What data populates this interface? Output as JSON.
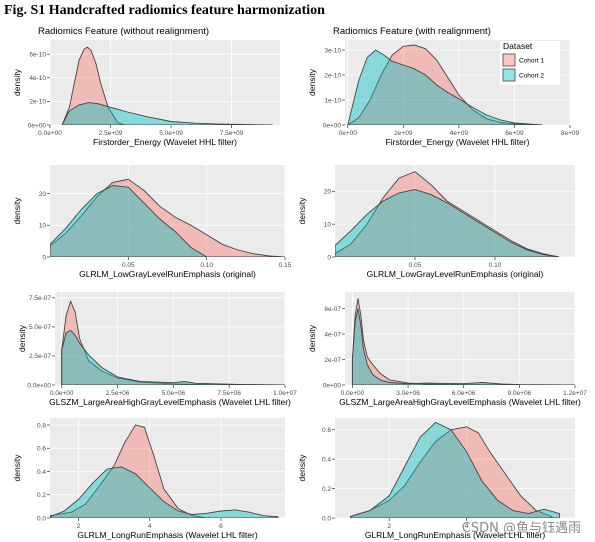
{
  "figure_title": "Fig. S1 Handcrafted radiomics feature harmonization",
  "watermark": "CSDN @鱼与钰遇雨",
  "colors": {
    "cohort1_fill": "#f8766d",
    "cohort2_fill": "#00bfc4",
    "panel_bg": "#ebebeb",
    "grid": "#ffffff",
    "outline": "#444444"
  },
  "legend": {
    "title": "Dataset",
    "entries": [
      "Cohort 1",
      "Cohort 2"
    ],
    "placement": "top-right of top-right panel"
  },
  "chart_data": [
    {
      "type": "area",
      "title": "Radiomics Feature (without realignment)",
      "xlabel": "Firstorder_Energy (Wavelet HHL filter)",
      "ylabel": "density",
      "xlim": [
        0,
        9500000000.0
      ],
      "ylim": [
        0,
        7.2e-10
      ],
      "xticks": [
        0,
        2500000000.0,
        5000000000.0,
        7500000000.0
      ],
      "xtick_labels": [
        "0.0e+00",
        "2.5e+09",
        "5.0e+09",
        "7.5e+09"
      ],
      "yticks": [
        0,
        2e-10,
        4e-10,
        6e-10
      ],
      "ytick_labels": [
        "0e+00",
        "2e-10",
        "4e-10",
        "6e-10"
      ],
      "series": [
        {
          "name": "Cohort 1",
          "x": [
            500000000.0,
            800000000.0,
            1000000000.0,
            1200000000.0,
            1400000000.0,
            1550000000.0,
            1700000000.0,
            1900000000.0,
            2100000000.0,
            2400000000.0,
            2800000000.0,
            3100000000.0
          ],
          "y": [
            0,
            1.5e-10,
            3.5e-10,
            5.5e-10,
            6.4e-10,
            6.6e-10,
            6.3e-10,
            5.2e-10,
            3.5e-10,
            1.5e-10,
            2e-11,
            0
          ]
        },
        {
          "name": "Cohort 2",
          "x": [
            500000000.0,
            800000000.0,
            1200000000.0,
            1600000000.0,
            2000000000.0,
            2600000000.0,
            3200000000.0,
            4000000000.0,
            5000000000.0,
            6000000000.0,
            7000000000.0,
            8000000000.0,
            9200000000.0
          ],
          "y": [
            0,
            1.2e-10,
            1.7e-10,
            1.9e-10,
            1.8e-10,
            1.45e-10,
            1.1e-10,
            7e-11,
            3e-11,
            1.5e-11,
            8e-12,
            4e-12,
            0
          ]
        }
      ]
    },
    {
      "type": "area",
      "title": "Radiomics Feature (with realignment)",
      "xlabel": "Firstorder_Energy (Wavelet HHL filter)",
      "ylabel": "density",
      "xlim": [
        -100000000.0,
        8000000000.0
      ],
      "ylim": [
        0,
        3.4e-10
      ],
      "xticks": [
        0,
        2000000000.0,
        4000000000.0,
        6000000000.0,
        8000000000.0
      ],
      "xtick_labels": [
        "0e+00",
        "2e+09",
        "4e+09",
        "6e+09",
        "8e+09"
      ],
      "yticks": [
        0,
        1e-10,
        2e-10,
        3e-10
      ],
      "ytick_labels": [
        "0e+00",
        "1e-10",
        "2e-10",
        "3e-10"
      ],
      "series": [
        {
          "name": "Cohort 1",
          "x": [
            0,
            400000000.0,
            800000000.0,
            1200000000.0,
            1600000000.0,
            2000000000.0,
            2400000000.0,
            2800000000.0,
            3200000000.0,
            3600000000.0,
            4000000000.0,
            4500000000.0,
            5000000000.0,
            5500000000.0,
            6000000000.0,
            7000000000.0
          ],
          "y": [
            0,
            3e-11,
            1e-10,
            2e-10,
            2.8e-10,
            3.15e-10,
            3.2e-10,
            3.05e-10,
            2.6e-10,
            1.9e-10,
            1.2e-10,
            6e-11,
            2.5e-11,
            1e-11,
            4e-12,
            0
          ]
        },
        {
          "name": "Cohort 2",
          "x": [
            0,
            400000000.0,
            700000000.0,
            1000000000.0,
            1300000000.0,
            1600000000.0,
            2000000000.0,
            2400000000.0,
            2800000000.0,
            3200000000.0,
            3600000000.0,
            4000000000.0,
            4500000000.0,
            5000000000.0,
            5500000000.0,
            6000000000.0,
            7000000000.0
          ],
          "y": [
            0,
            1.8e-10,
            2.7e-10,
            3e-10,
            2.8e-10,
            2.55e-10,
            2.4e-10,
            2.25e-10,
            2e-10,
            1.6e-10,
            1.3e-10,
            1.05e-10,
            7e-11,
            4e-11,
            2e-11,
            8e-12,
            0
          ]
        }
      ]
    },
    {
      "type": "area",
      "xlabel": "GLRLM_LowGrayLevelRunEmphasis (original)",
      "ylabel": "density",
      "xlim": [
        0,
        0.15
      ],
      "ylim": [
        0,
        29
      ],
      "xticks": [
        0.05,
        0.1,
        0.15
      ],
      "xtick_labels": [
        "0.05",
        "0.10",
        "0.15"
      ],
      "yticks": [
        0,
        10,
        20
      ],
      "ytick_labels": [
        "0",
        "10",
        "20"
      ],
      "series": [
        {
          "name": "Cohort 1",
          "x": [
            0,
            0.01,
            0.02,
            0.03,
            0.04,
            0.05,
            0.06,
            0.07,
            0.08,
            0.09,
            0.1,
            0.11,
            0.12,
            0.13,
            0.14,
            0.15
          ],
          "y": [
            3.5,
            7.5,
            13,
            19,
            23.5,
            24.5,
            21,
            16,
            12.5,
            10,
            7,
            4,
            2.2,
            1,
            0.3,
            0
          ]
        },
        {
          "name": "Cohort 2",
          "x": [
            0,
            0.01,
            0.02,
            0.03,
            0.04,
            0.05,
            0.06,
            0.07,
            0.08,
            0.09,
            0.1
          ],
          "y": [
            4,
            9,
            15,
            20,
            22.5,
            22,
            17,
            12,
            8,
            3,
            0
          ]
        }
      ]
    },
    {
      "type": "area",
      "xlabel": "GLRLM_LowGrayLevelRunEmphasis (original)",
      "ylabel": "density",
      "xlim": [
        0,
        0.15
      ],
      "ylim": [
        0,
        28
      ],
      "xticks": [
        0.05,
        0.1
      ],
      "xtick_labels": [
        "0.05",
        "0.10"
      ],
      "yticks": [
        0,
        10,
        20
      ],
      "ytick_labels": [
        "0",
        "10",
        "20"
      ],
      "series": [
        {
          "name": "Cohort 1",
          "x": [
            0,
            0.01,
            0.02,
            0.03,
            0.04,
            0.05,
            0.06,
            0.07,
            0.08,
            0.09,
            0.1,
            0.11,
            0.12,
            0.13,
            0.14
          ],
          "y": [
            1,
            4,
            10,
            18,
            24,
            26,
            22,
            17,
            14,
            11,
            8,
            5,
            2.5,
            1,
            0
          ]
        },
        {
          "name": "Cohort 2",
          "x": [
            0,
            0.01,
            0.02,
            0.03,
            0.04,
            0.05,
            0.06,
            0.07,
            0.08,
            0.09,
            0.1,
            0.11,
            0.12,
            0.13,
            0.14
          ],
          "y": [
            3.5,
            8,
            13,
            17,
            19.5,
            20.5,
            19,
            16.5,
            13.5,
            10.5,
            7.5,
            4.5,
            2.2,
            0.8,
            0
          ]
        }
      ]
    },
    {
      "type": "area",
      "xlabel": "GLSZM_LargeAreaHighGrayLevelEmphasis (Wavelet LHL filter)",
      "ylabel": "density",
      "xlim": [
        -300000.0,
        10000000.0
      ],
      "ylim": [
        0,
        8e-07
      ],
      "xticks": [
        0,
        2500000.0,
        5000000.0,
        7500000.0,
        10000000.0
      ],
      "xtick_labels": [
        "0.0e+00",
        "2.5e+06",
        "5.0e+06",
        "7.5e+06",
        "1.0e+07"
      ],
      "yticks": [
        0,
        2.5e-07,
        5e-07,
        7.5e-07
      ],
      "ytick_labels": [
        "0.0e+00",
        "2.5e-07",
        "5.0e-07",
        "7.5e-07"
      ],
      "series": [
        {
          "name": "Cohort 1",
          "x": [
            0,
            200000.0,
            400000.0,
            600000.0,
            800000.0,
            1200000.0,
            1800000.0,
            2500000.0,
            3500000.0,
            5000000.0,
            6000000.0,
            8000000.0,
            10000000.0
          ],
          "y": [
            3e-07,
            6e-07,
            7.2e-07,
            6.3e-07,
            4e-07,
            2.1e-07,
            1.2e-07,
            6e-08,
            2.5e-08,
            1e-08,
            5e-09,
            2e-09,
            0
          ]
        },
        {
          "name": "Cohort 2",
          "x": [
            0,
            200000.0,
            400000.0,
            600000.0,
            800000.0,
            1200000.0,
            1800000.0,
            2500000.0,
            3500000.0,
            5000000.0,
            5500000.0,
            6000000.0,
            8000000.0,
            10000000.0
          ],
          "y": [
            3e-07,
            4.5e-07,
            4.7e-07,
            4.3e-07,
            3.6e-07,
            2.6e-07,
            1.5e-07,
            7e-08,
            3e-08,
            2e-08,
            3e-08,
            1.5e-08,
            5e-09,
            0
          ]
        }
      ]
    },
    {
      "type": "area",
      "xlabel": "GLSZM_LargeAreaHighGrayLevelEmphasis (Wavelet LHL filter)",
      "ylabel": "density",
      "xlim": [
        -400000.0,
        12000000.0
      ],
      "ylim": [
        0,
        7.3e-07
      ],
      "xticks": [
        0,
        3000000.0,
        6000000.0,
        9000000.0,
        12000000.0
      ],
      "xtick_labels": [
        "0.0e+00",
        "3.0e+06",
        "6.0e+06",
        "9.0e+06",
        "1.2e+07"
      ],
      "yticks": [
        0,
        2e-07,
        4e-07,
        6e-07
      ],
      "ytick_labels": [
        "0e+00",
        "2e-07",
        "4e-07",
        "6e-07"
      ],
      "series": [
        {
          "name": "Cohort 1",
          "x": [
            0,
            150000.0,
            300000.0,
            450000.0,
            600000.0,
            800000.0,
            1100000.0,
            1500000.0,
            2000000.0,
            3000000.0,
            4000000.0,
            6000000.0,
            9000000.0,
            12000000.0
          ],
          "y": [
            2e-07,
            5.5e-07,
            6.8e-07,
            5.5e-07,
            3.5e-07,
            2.2e-07,
            1.6e-07,
            9e-08,
            4e-08,
            1.5e-08,
            8e-09,
            3e-09,
            1e-09,
            0
          ]
        },
        {
          "name": "Cohort 2",
          "x": [
            0,
            150000.0,
            300000.0,
            450000.0,
            600000.0,
            800000.0,
            1100000.0,
            1500000.0,
            2000000.0,
            3000000.0,
            4000000.0,
            6000000.0,
            7000000.0,
            8000000.0,
            9000000.0,
            12000000.0
          ],
          "y": [
            2e-07,
            5e-07,
            6e-07,
            4.7e-07,
            2.8e-07,
            1.6e-07,
            8e-08,
            4e-08,
            2e-08,
            1e-08,
            1.5e-08,
            1e-08,
            2e-08,
            8e-09,
            3e-09,
            0
          ]
        }
      ]
    },
    {
      "type": "area",
      "xlabel": "GLRLM_LongRunEmphasis (Wavelet LHL filter)",
      "ylabel": "density",
      "xlim": [
        1.2,
        7.8
      ],
      "ylim": [
        0,
        0.86
      ],
      "xticks": [
        2,
        4,
        6
      ],
      "xtick_labels": [
        "2",
        "4",
        "6"
      ],
      "yticks": [
        0,
        0.2,
        0.4,
        0.6,
        0.8
      ],
      "ytick_labels": [
        "0.0",
        "0.2",
        "0.4",
        "0.6",
        "0.8"
      ],
      "series": [
        {
          "name": "Cohort 1",
          "x": [
            1.2,
            1.8,
            2.2,
            2.6,
            3.0,
            3.3,
            3.6,
            3.85,
            4.1,
            4.4,
            4.8,
            5.2,
            5.6
          ],
          "y": [
            0.02,
            0.05,
            0.12,
            0.28,
            0.45,
            0.65,
            0.8,
            0.78,
            0.55,
            0.25,
            0.08,
            0.02,
            0
          ]
        },
        {
          "name": "Cohort 2",
          "x": [
            1.2,
            1.6,
            2.0,
            2.4,
            2.8,
            3.2,
            3.6,
            4.0,
            4.4,
            4.8,
            5.2,
            5.6,
            6.0,
            6.4,
            6.8,
            7.2,
            7.6
          ],
          "y": [
            0.01,
            0.06,
            0.16,
            0.3,
            0.42,
            0.44,
            0.38,
            0.26,
            0.14,
            0.06,
            0.03,
            0.04,
            0.06,
            0.07,
            0.05,
            0.02,
            0.01
          ]
        }
      ]
    },
    {
      "type": "area",
      "xlabel": "GLRLM_LongRunEmphasis (Wavelet LHL filter)",
      "ylabel": "density",
      "xlim": [
        0.6,
        6.8
      ],
      "ylim": [
        0,
        0.68
      ],
      "xticks": [
        2,
        4
      ],
      "xtick_labels": [
        "2",
        "4"
      ],
      "yticks": [
        0,
        0.2,
        0.4,
        0.6
      ],
      "ytick_labels": [
        "0.0",
        "0.2",
        "0.4",
        "0.6"
      ],
      "series": [
        {
          "name": "Cohort 1",
          "x": [
            1.0,
            1.5,
            2.0,
            2.4,
            2.8,
            3.2,
            3.6,
            4.0,
            4.3,
            4.6,
            5.0,
            5.4,
            5.8,
            6.2
          ],
          "y": [
            0.01,
            0.05,
            0.12,
            0.22,
            0.38,
            0.52,
            0.6,
            0.62,
            0.58,
            0.45,
            0.3,
            0.15,
            0.05,
            0.01
          ]
        },
        {
          "name": "Cohort 2",
          "x": [
            1.0,
            1.5,
            2.0,
            2.4,
            2.8,
            3.2,
            3.6,
            4.0,
            4.4,
            4.8,
            5.2,
            5.6,
            6.0,
            6.4
          ],
          "y": [
            0.01,
            0.05,
            0.15,
            0.35,
            0.55,
            0.65,
            0.6,
            0.45,
            0.25,
            0.12,
            0.05,
            0.03,
            0.06,
            0.03
          ]
        }
      ]
    }
  ]
}
